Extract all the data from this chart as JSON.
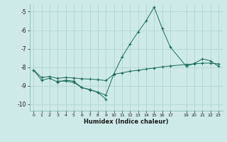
{
  "xlabel": "Humidex (Indice chaleur)",
  "background_color": "#ceeae8",
  "grid_color": "#aacfcc",
  "line_color": "#1a6b5a",
  "xlim": [
    -0.5,
    23.5
  ],
  "ylim": [
    -10.35,
    -4.6
  ],
  "yticks": [
    -10,
    -9,
    -8,
    -7,
    -6,
    -5
  ],
  "xticks": [
    0,
    1,
    2,
    3,
    4,
    5,
    6,
    7,
    8,
    9,
    10,
    11,
    12,
    13,
    14,
    15,
    16,
    17,
    19,
    20,
    21,
    22,
    23
  ],
  "xtick_labels": [
    "0",
    "1",
    "2",
    "3",
    "4",
    "5",
    "6",
    "7",
    "8",
    "9",
    "10",
    "11",
    "12",
    "13",
    "14",
    "15",
    "16",
    "17",
    "19",
    "20",
    "21",
    "22",
    "23"
  ],
  "series": [
    {
      "x": [
        0,
        1,
        2,
        3,
        4,
        5,
        6,
        7,
        8,
        9,
        10,
        11,
        12,
        13,
        14,
        15,
        16,
        17,
        19,
        20,
        21,
        22,
        23
      ],
      "y": [
        -8.15,
        -8.7,
        -8.6,
        -8.8,
        -8.7,
        -8.75,
        -9.1,
        -9.2,
        -9.35,
        -9.5,
        -8.35,
        -7.45,
        -6.75,
        -6.1,
        -5.5,
        -4.75,
        -5.9,
        -6.9,
        -7.95,
        -7.8,
        -7.55,
        -7.65,
        -7.95
      ]
    },
    {
      "x": [
        0,
        1,
        2,
        3,
        4,
        5,
        6,
        7,
        8,
        9,
        10,
        11,
        12,
        13,
        14,
        15,
        16,
        17,
        19,
        20,
        21,
        22,
        23
      ],
      "y": [
        -8.15,
        -8.55,
        -8.5,
        -8.6,
        -8.55,
        -8.58,
        -8.62,
        -8.64,
        -8.67,
        -8.72,
        -8.38,
        -8.3,
        -8.22,
        -8.16,
        -8.1,
        -8.04,
        -7.98,
        -7.93,
        -7.85,
        -7.82,
        -7.78,
        -7.78,
        -7.82
      ]
    },
    {
      "x": [
        3,
        4,
        5,
        6,
        7,
        8,
        9
      ],
      "y": [
        -8.75,
        -8.75,
        -8.82,
        -9.1,
        -9.22,
        -9.35,
        -9.72
      ]
    }
  ]
}
